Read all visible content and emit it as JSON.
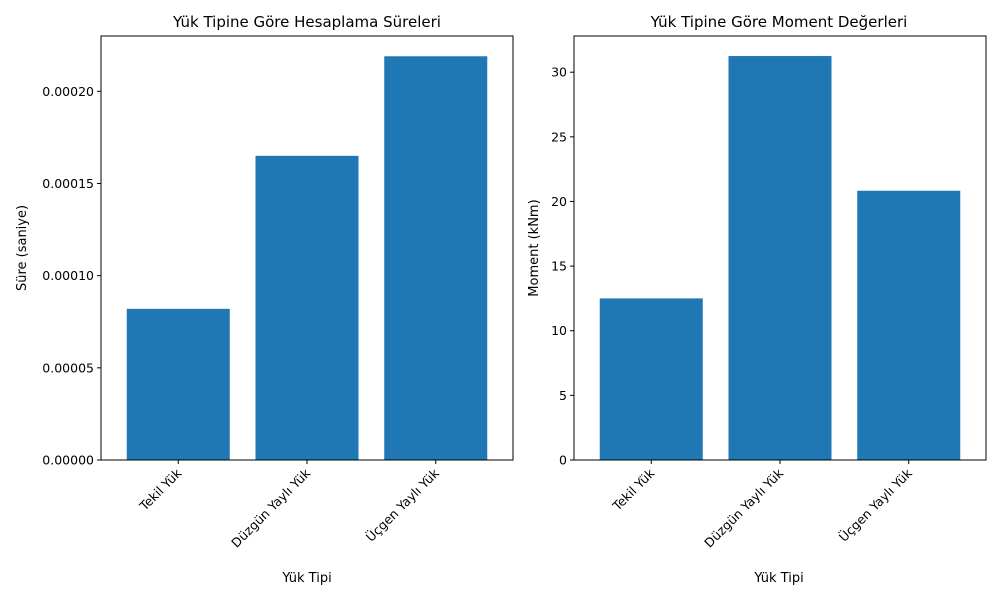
{
  "chart_data": [
    {
      "type": "bar",
      "title": "Yük Tipine Göre Hesaplama Süreleri",
      "xlabel": "Yük Tipi",
      "ylabel": "Süre (saniye)",
      "categories": [
        "Tekil Yük",
        "Düzgün Yaylı Yük",
        "Üçgen Yaylı Yük"
      ],
      "values": [
        8.2e-05,
        0.000165,
        0.000219
      ],
      "ylim": [
        0,
        0.00023
      ],
      "yticks": [
        0,
        5e-05,
        0.0001,
        0.00015,
        0.0002
      ],
      "ytick_labels": [
        "0.00000",
        "0.00005",
        "0.00010",
        "0.00015",
        "0.00020"
      ],
      "bar_color": "#1f77b4",
      "grid": false
    },
    {
      "type": "bar",
      "title": "Yük Tipine Göre Moment Değerleri",
      "xlabel": "Yük Tipi",
      "ylabel": "Moment (kNm)",
      "categories": [
        "Tekil Yük",
        "Düzgün Yaylı Yük",
        "Üçgen Yaylı Yük"
      ],
      "values": [
        12.5,
        31.25,
        20.83
      ],
      "ylim": [
        0,
        32.8
      ],
      "yticks": [
        0,
        5,
        10,
        15,
        20,
        25,
        30
      ],
      "ytick_labels": [
        "0",
        "5",
        "10",
        "15",
        "20",
        "25",
        "30"
      ],
      "bar_color": "#1f77b4",
      "grid": false
    }
  ]
}
